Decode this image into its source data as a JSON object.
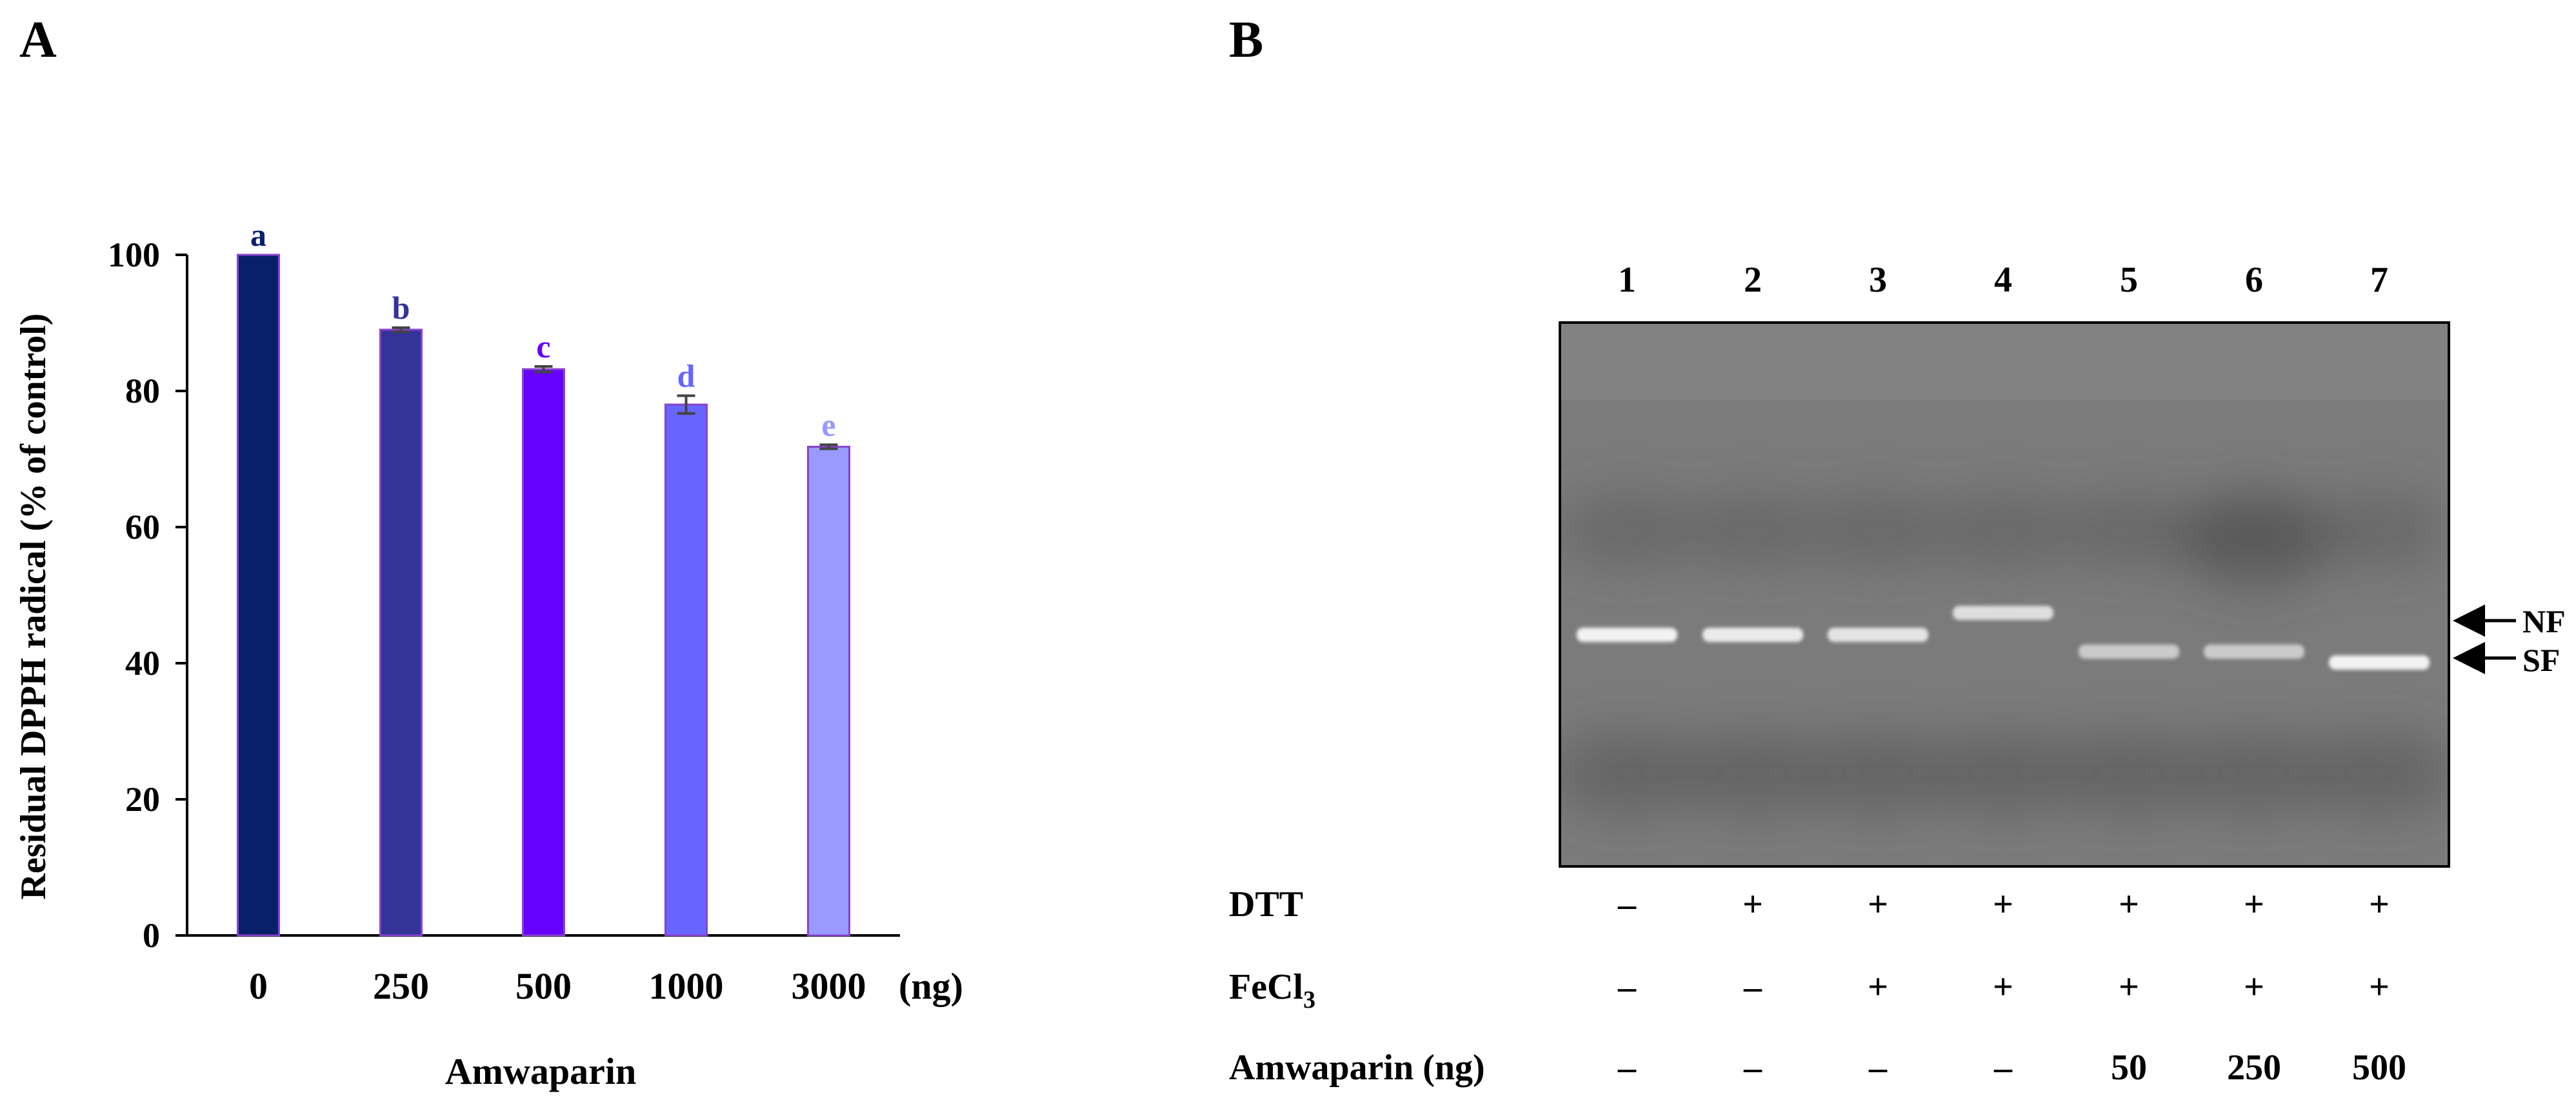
{
  "panels": {
    "a_label": "A",
    "b_label": "B"
  },
  "chart_data": [
    {
      "type": "bar",
      "title": "",
      "ylabel": "Residual DPPH radical (% of control)",
      "xlabel": "Amwaparin",
      "x_unit": "(ng)",
      "categories": [
        "0",
        "250",
        "500",
        "1000",
        "3000"
      ],
      "values": [
        100,
        89,
        83.2,
        78,
        71.8
      ],
      "errors": [
        0,
        0.3,
        0.4,
        1.3,
        0.3
      ],
      "significance_letters": [
        "a",
        "b",
        "c",
        "d",
        "e"
      ],
      "colors": [
        "#08206a",
        "#33339a",
        "#6600ff",
        "#6666ff",
        "#9999ff"
      ],
      "letter_colors": [
        "#08206a",
        "#33339a",
        "#6600ff",
        "#6666ff",
        "#9999ff"
      ],
      "edge_color": "#8844cc",
      "ylim": [
        0,
        100
      ],
      "yticks": [
        0,
        20,
        40,
        60,
        80,
        100
      ],
      "grid": false,
      "legend": "none"
    },
    {
      "type": "gel",
      "lanes": [
        "1",
        "2",
        "3",
        "4",
        "5",
        "6",
        "7"
      ],
      "band_labels": [
        "NF",
        "SF"
      ],
      "treatments": [
        {
          "label": "DTT",
          "sub": "",
          "values": [
            "–",
            "+",
            "+",
            "+",
            "+",
            "+",
            "+"
          ]
        },
        {
          "label": "FeCl",
          "sub": "3",
          "values": [
            "–",
            "–",
            "+",
            "+",
            "+",
            "+",
            "+"
          ]
        },
        {
          "label": "Amwaparin (ng)",
          "sub": "",
          "values": [
            "–",
            "–",
            "–",
            "–",
            "50",
            "250",
            "500"
          ]
        }
      ],
      "band_form": [
        "SF",
        "SF",
        "SF",
        "NF",
        "SF",
        "SF",
        "SF"
      ],
      "band_intensity": [
        0.9,
        0.85,
        0.8,
        0.75,
        0.6,
        0.6,
        0.9
      ]
    }
  ]
}
